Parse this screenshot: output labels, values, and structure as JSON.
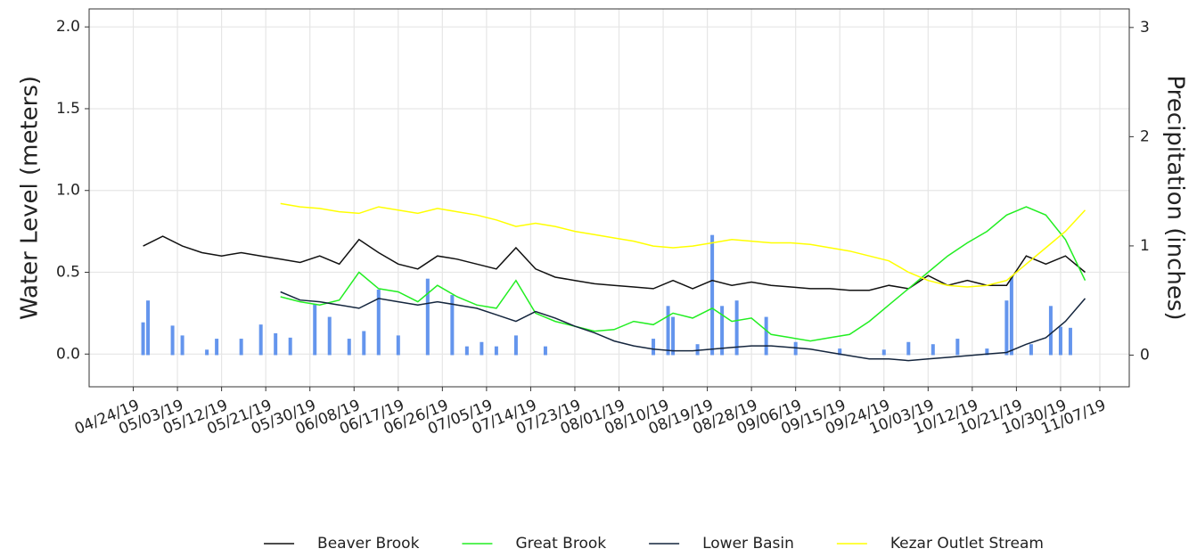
{
  "chart_data": {
    "type": "line",
    "y_label": "Water Level (meters)",
    "y2_label": "Precipitation (inches)",
    "x": [
      "2019-04-26",
      "2019-04-30",
      "2019-05-04",
      "2019-05-08",
      "2019-05-12",
      "2019-05-16",
      "2019-05-20",
      "2019-05-24",
      "2019-05-28",
      "2019-06-01",
      "2019-06-05",
      "2019-06-09",
      "2019-06-13",
      "2019-06-17",
      "2019-06-21",
      "2019-06-25",
      "2019-06-29",
      "2019-07-03",
      "2019-07-07",
      "2019-07-11",
      "2019-07-15",
      "2019-07-19",
      "2019-07-23",
      "2019-07-27",
      "2019-07-31",
      "2019-08-04",
      "2019-08-08",
      "2019-08-12",
      "2019-08-16",
      "2019-08-20",
      "2019-08-24",
      "2019-08-28",
      "2019-09-01",
      "2019-09-05",
      "2019-09-09",
      "2019-09-13",
      "2019-09-17",
      "2019-09-21",
      "2019-09-25",
      "2019-09-29",
      "2019-10-03",
      "2019-10-07",
      "2019-10-11",
      "2019-10-15",
      "2019-10-19",
      "2019-10-23",
      "2019-10-27",
      "2019-10-31",
      "2019-11-04"
    ],
    "series": [
      {
        "name": "Beaver Brook",
        "color": "#111111",
        "values": [
          0.66,
          0.72,
          0.66,
          0.62,
          0.6,
          0.62,
          0.6,
          0.58,
          0.56,
          0.6,
          0.55,
          0.7,
          0.62,
          0.55,
          0.52,
          0.6,
          0.58,
          0.55,
          0.52,
          0.65,
          0.52,
          0.47,
          0.45,
          0.43,
          0.42,
          0.41,
          0.4,
          0.45,
          0.4,
          0.45,
          0.42,
          0.44,
          0.42,
          0.41,
          0.4,
          0.4,
          0.39,
          0.39,
          0.42,
          0.4,
          0.48,
          0.42,
          0.45,
          0.42,
          0.42,
          0.6,
          0.55,
          0.6,
          0.5
        ]
      },
      {
        "name": "Great Brook",
        "color": "#22ee22",
        "values": [
          null,
          null,
          null,
          null,
          null,
          null,
          null,
          0.35,
          0.32,
          0.3,
          0.33,
          0.5,
          0.4,
          0.38,
          0.32,
          0.42,
          0.35,
          0.3,
          0.28,
          0.45,
          0.25,
          0.2,
          0.17,
          0.14,
          0.15,
          0.2,
          0.18,
          0.25,
          0.22,
          0.28,
          0.2,
          0.22,
          0.12,
          0.1,
          0.08,
          0.1,
          0.12,
          0.2,
          0.3,
          0.4,
          0.5,
          0.6,
          0.68,
          0.75,
          0.85,
          0.9,
          0.85,
          0.7,
          0.45
        ]
      },
      {
        "name": "Lower Basin",
        "color": "#14253d",
        "values": [
          null,
          null,
          null,
          null,
          null,
          null,
          null,
          0.38,
          0.33,
          0.32,
          0.3,
          0.28,
          0.34,
          0.32,
          0.3,
          0.32,
          0.3,
          0.28,
          0.24,
          0.2,
          0.26,
          0.22,
          0.17,
          0.13,
          0.08,
          0.05,
          0.03,
          0.02,
          0.02,
          0.03,
          0.04,
          0.05,
          0.05,
          0.04,
          0.03,
          0.01,
          -0.01,
          -0.03,
          -0.03,
          -0.04,
          -0.03,
          -0.02,
          -0.01,
          0,
          0.01,
          0.06,
          0.1,
          0.2,
          0.34
        ]
      },
      {
        "name": "Kezar Outlet Stream",
        "color": "#ffff00",
        "values": [
          null,
          null,
          null,
          null,
          null,
          null,
          null,
          0.92,
          0.9,
          0.89,
          0.87,
          0.86,
          0.9,
          0.88,
          0.86,
          0.89,
          0.87,
          0.85,
          0.82,
          0.78,
          0.8,
          0.78,
          0.75,
          0.73,
          0.71,
          0.69,
          0.66,
          0.65,
          0.66,
          0.68,
          0.7,
          0.69,
          0.68,
          0.68,
          0.67,
          0.65,
          0.63,
          0.6,
          0.57,
          0.5,
          0.45,
          0.42,
          0.41,
          0.42,
          0.45,
          0.55,
          0.65,
          0.75,
          0.88
        ]
      }
    ],
    "bars": {
      "color": "#6495ed",
      "axis": "y2",
      "x": [
        "2019-04-26",
        "2019-04-27",
        "2019-05-02",
        "2019-05-04",
        "2019-05-09",
        "2019-05-11",
        "2019-05-16",
        "2019-05-20",
        "2019-05-23",
        "2019-05-26",
        "2019-05-31",
        "2019-06-03",
        "2019-06-07",
        "2019-06-10",
        "2019-06-13",
        "2019-06-17",
        "2019-06-23",
        "2019-06-28",
        "2019-07-01",
        "2019-07-04",
        "2019-07-07",
        "2019-07-11",
        "2019-07-17",
        "2019-08-08",
        "2019-08-11",
        "2019-08-12",
        "2019-08-17",
        "2019-08-20",
        "2019-08-22",
        "2019-08-25",
        "2019-08-31",
        "2019-09-06",
        "2019-09-15",
        "2019-09-24",
        "2019-09-29",
        "2019-10-04",
        "2019-10-09",
        "2019-10-15",
        "2019-10-19",
        "2019-10-20",
        "2019-10-24",
        "2019-10-28",
        "2019-10-30",
        "2019-11-01"
      ],
      "values": [
        0.3,
        0.5,
        0.27,
        0.18,
        0.05,
        0.15,
        0.15,
        0.28,
        0.2,
        0.16,
        0.47,
        0.35,
        0.15,
        0.22,
        0.6,
        0.18,
        0.7,
        0.55,
        0.08,
        0.12,
        0.08,
        0.18,
        0.08,
        0.15,
        0.45,
        0.35,
        0.1,
        1.1,
        0.45,
        0.5,
        0.35,
        0.12,
        0.06,
        0.05,
        0.12,
        0.1,
        0.15,
        0.06,
        0.5,
        0.72,
        0.1,
        0.45,
        0.26,
        0.25
      ]
    },
    "xlim": [
      "2019-04-15",
      "2019-11-13"
    ],
    "xticks": [
      {
        "value": "2019-04-24",
        "label": "04/24/19"
      },
      {
        "value": "2019-05-03",
        "label": "05/03/19"
      },
      {
        "value": "2019-05-12",
        "label": "05/12/19"
      },
      {
        "value": "2019-05-21",
        "label": "05/21/19"
      },
      {
        "value": "2019-05-30",
        "label": "05/30/19"
      },
      {
        "value": "2019-06-08",
        "label": "06/08/19"
      },
      {
        "value": "2019-06-17",
        "label": "06/17/19"
      },
      {
        "value": "2019-06-26",
        "label": "06/26/19"
      },
      {
        "value": "2019-07-05",
        "label": "07/05/19"
      },
      {
        "value": "2019-07-14",
        "label": "07/14/19"
      },
      {
        "value": "2019-07-23",
        "label": "07/23/19"
      },
      {
        "value": "2019-08-01",
        "label": "08/01/19"
      },
      {
        "value": "2019-08-10",
        "label": "08/10/19"
      },
      {
        "value": "2019-08-19",
        "label": "08/19/19"
      },
      {
        "value": "2019-08-28",
        "label": "08/28/19"
      },
      {
        "value": "2019-09-06",
        "label": "09/06/19"
      },
      {
        "value": "2019-09-15",
        "label": "09/15/19"
      },
      {
        "value": "2019-09-24",
        "label": "09/24/19"
      },
      {
        "value": "2019-10-03",
        "label": "10/03/19"
      },
      {
        "value": "2019-10-12",
        "label": "10/12/19"
      },
      {
        "value": "2019-10-21",
        "label": "10/21/19"
      },
      {
        "value": "2019-10-30",
        "label": "10/30/19"
      },
      {
        "value": "2019-11-07",
        "label": "11/07/19"
      }
    ],
    "ylim": [
      -0.2,
      2.11
    ],
    "yticks": [
      {
        "value": 0,
        "label": "0.0"
      },
      0.5,
      {
        "value": 1,
        "label": "1.0"
      },
      1.5,
      {
        "value": 2,
        "label": "2.0"
      }
    ],
    "y2lim": [
      -0.29,
      3.17
    ],
    "y2ticks": [
      0,
      1,
      2,
      3
    ],
    "grid": true,
    "legend": "bottom"
  }
}
